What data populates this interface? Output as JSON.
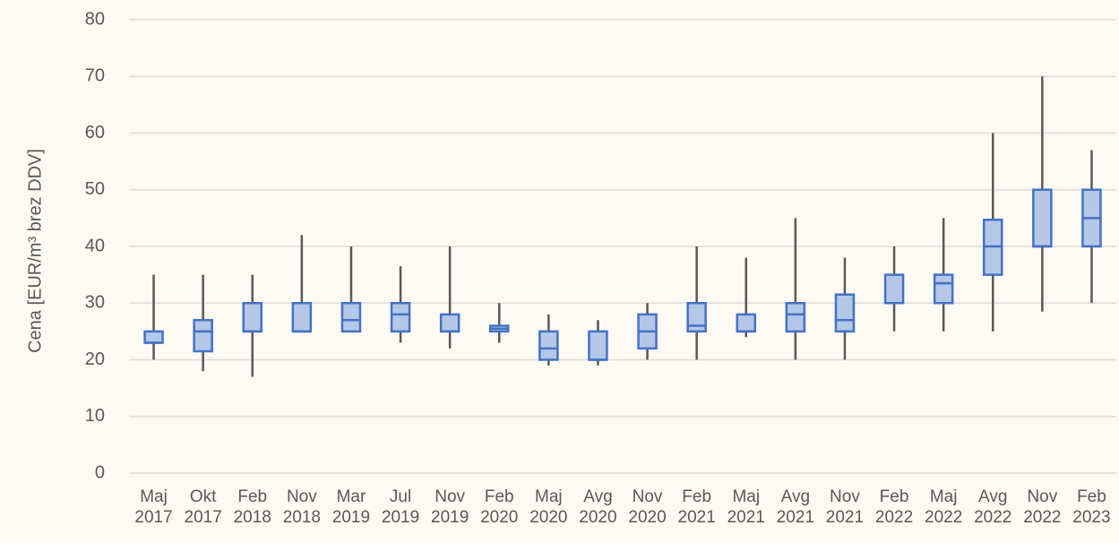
{
  "chart_data": {
    "type": "box",
    "y_label": "Cena [EUR/m³ brez DDV]",
    "categories": [
      "Maj 2017",
      "Okt 2017",
      "Feb 2018",
      "Nov 2018",
      "Mar 2019",
      "Jul 2019",
      "Nov 2019",
      "Feb 2020",
      "Maj 2020",
      "Avg 2020",
      "Nov 2020",
      "Feb 2021",
      "Maj 2021",
      "Avg 2021",
      "Nov 2021",
      "Feb 2022",
      "Maj 2022",
      "Avg 2022",
      "Nov 2022",
      "Feb 2023"
    ],
    "min": [
      20,
      18,
      17,
      25,
      25,
      23,
      22,
      23,
      19,
      19,
      20,
      20,
      24,
      20,
      20,
      25,
      25,
      25,
      28.5,
      30
    ],
    "q1": [
      23,
      21.5,
      25,
      25,
      25,
      25,
      25,
      25,
      20,
      20,
      22,
      25,
      25,
      25,
      25,
      30,
      30,
      35,
      40,
      40
    ],
    "median": [
      23,
      25,
      25,
      25,
      27,
      28,
      25,
      25.5,
      22,
      20,
      25,
      26,
      25,
      28,
      27,
      30,
      33.5,
      40,
      40,
      45
    ],
    "q3": [
      25,
      27,
      30,
      30,
      30,
      30,
      28,
      26,
      25,
      25,
      28,
      30,
      28,
      30,
      31.5,
      35,
      35,
      44.7,
      50,
      50
    ],
    "max": [
      35,
      35,
      35,
      42,
      40,
      36.5,
      40,
      30,
      28,
      27,
      30,
      40,
      38,
      45,
      38,
      40,
      45,
      60,
      70,
      57
    ],
    "box_color": "#b4c7e7",
    "edge_color": "#4472c4",
    "whisker_color": "#595959",
    "ylim": [
      0,
      80
    ],
    "yticks": [
      0,
      10,
      20,
      30,
      40,
      50,
      60,
      70,
      80
    ],
    "grid": true
  }
}
